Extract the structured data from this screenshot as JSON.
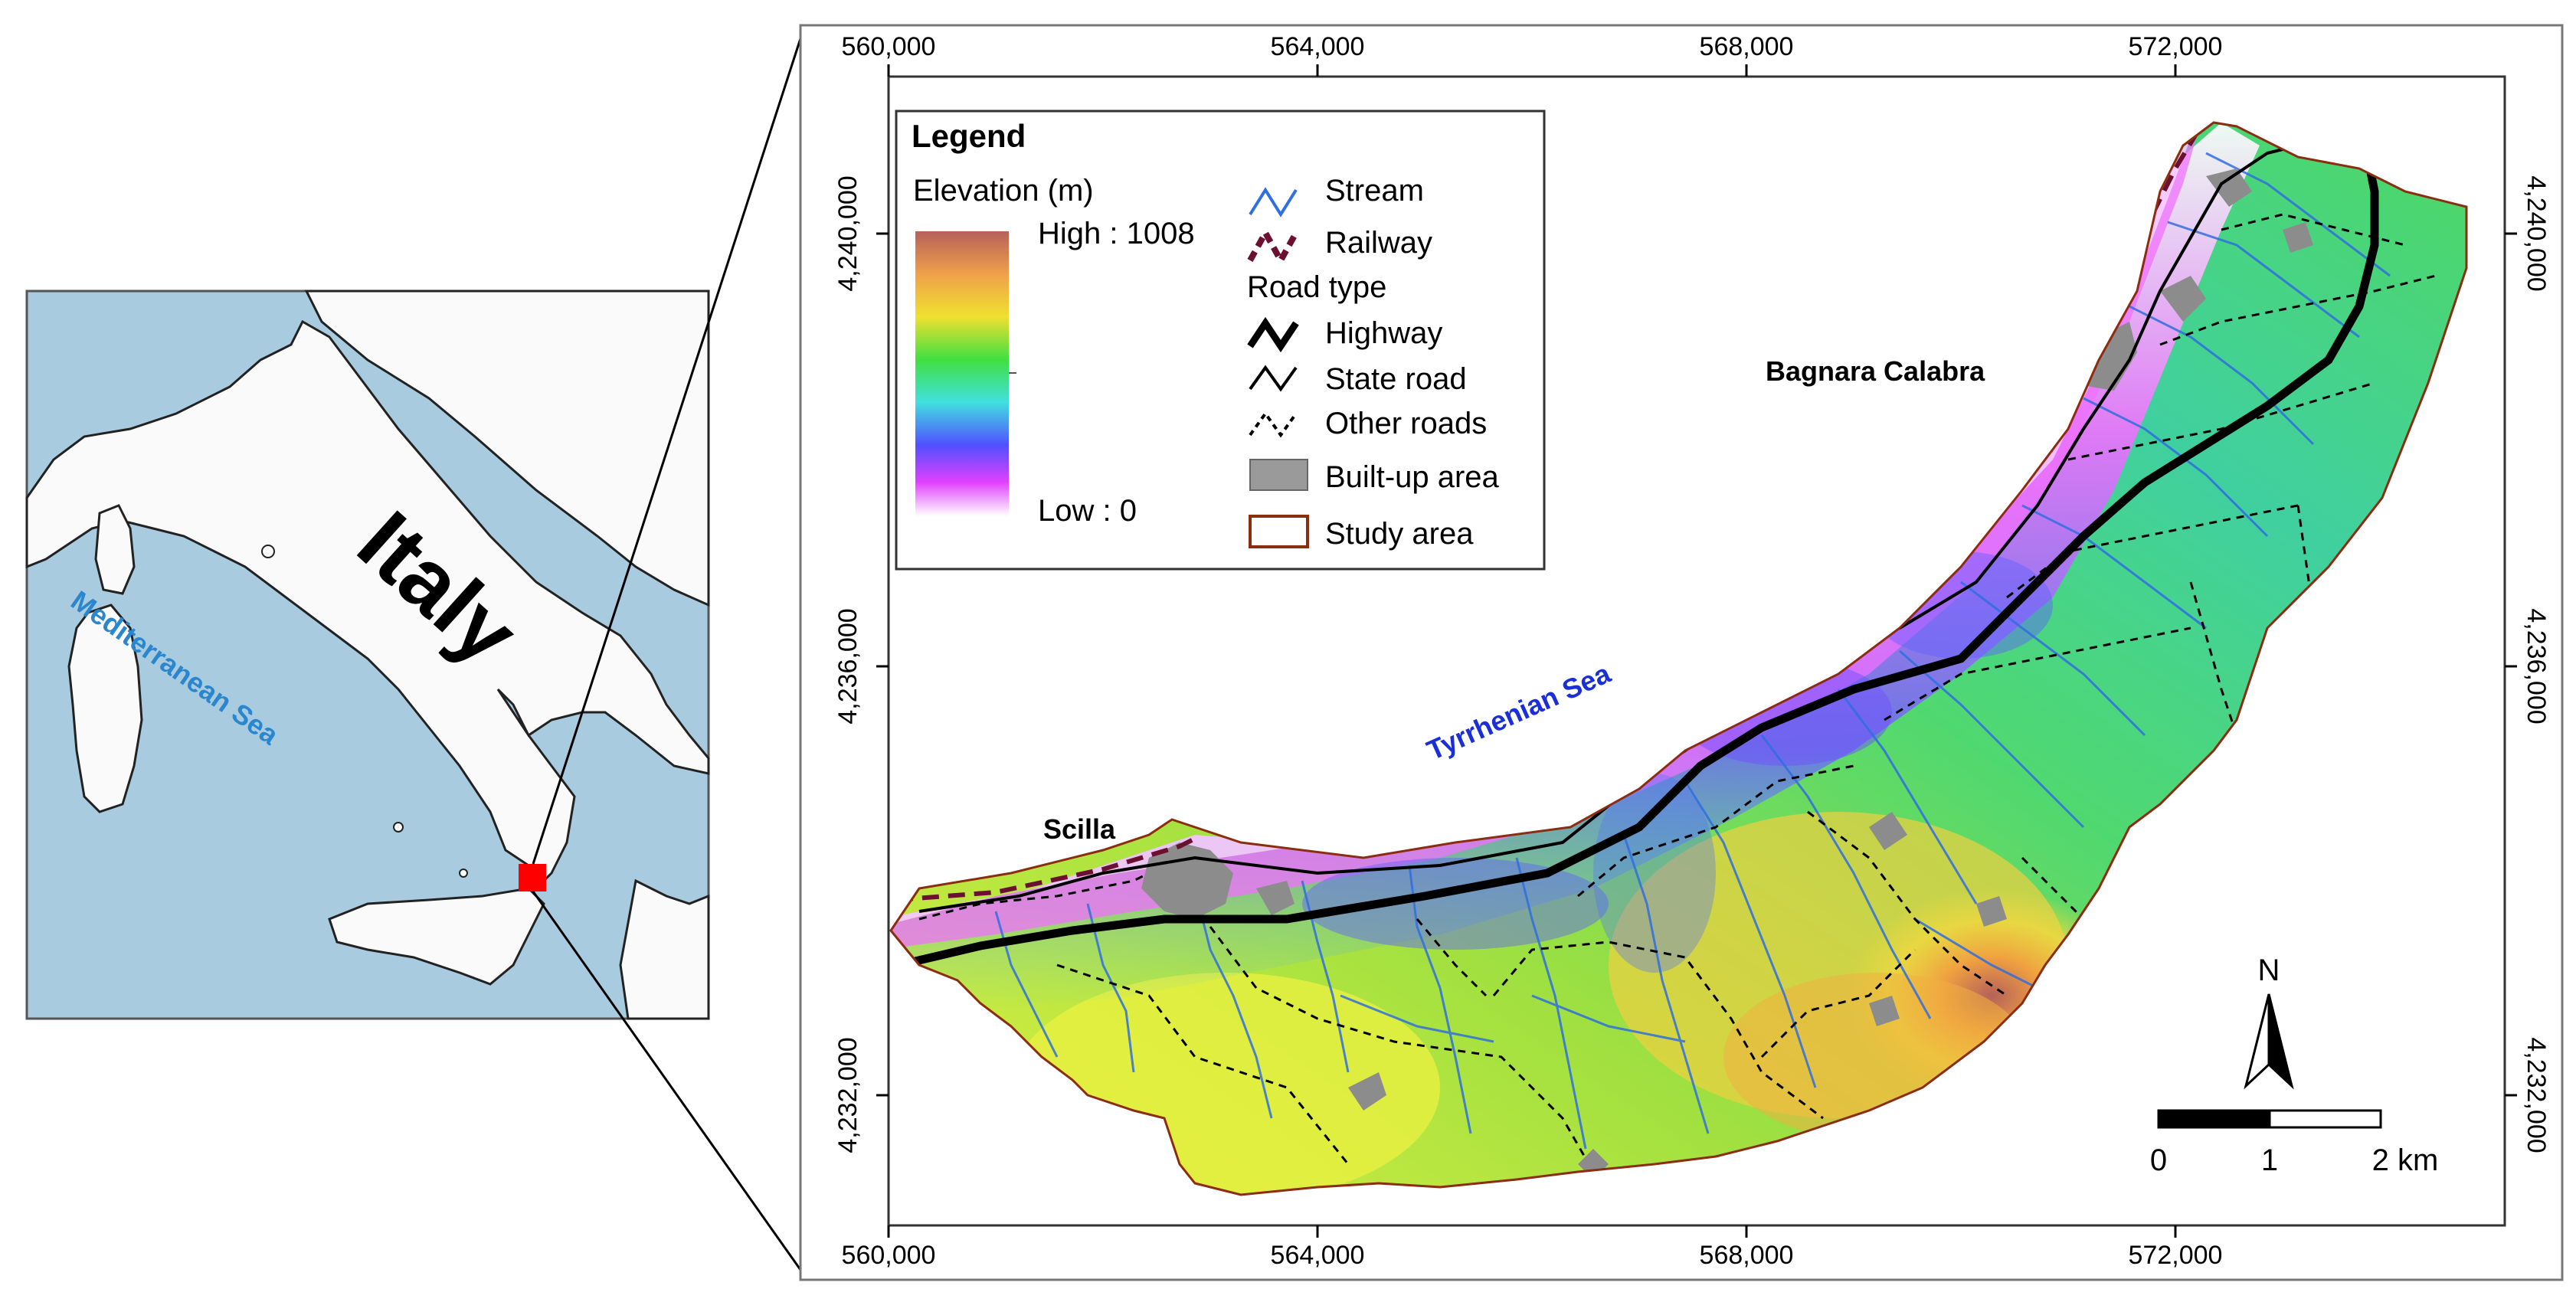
{
  "inset": {
    "country_label": "Italy",
    "sea_label": "Mediterranean Sea",
    "colors": {
      "sea": "#a9cbe0",
      "land": "#fafafa",
      "locator": "#ff0000"
    }
  },
  "map": {
    "x_ticks": [
      "560,000",
      "564,000",
      "568,000",
      "572,000"
    ],
    "y_ticks": [
      "4,240,000",
      "4,236,000",
      "4,232,000"
    ],
    "places": {
      "scilla": "Scilla",
      "bagnara": "Bagnara Calabra",
      "sea": "Tyrrhenian Sea"
    },
    "colors": {
      "sea_label": "#1a2fd6",
      "stream": "#2f6fe0",
      "railway": "#6b1030",
      "study_area": "#8b2d10",
      "built_up": "#9a9a9a"
    }
  },
  "legend": {
    "title": "Legend",
    "elevation_title": "Elevation (m)",
    "high_label": "High : 1008",
    "low_label": "Low : 0",
    "stream": "Stream",
    "railway": "Railway",
    "road_type": "Road type",
    "highway": "Highway",
    "state_road": "State road",
    "other_roads": "Other roads",
    "built_up": "Built-up area",
    "study_area": "Study area"
  },
  "north_arrow": {
    "label": "N"
  },
  "scale_bar": {
    "labels": [
      "0",
      "1",
      "2 km"
    ]
  }
}
